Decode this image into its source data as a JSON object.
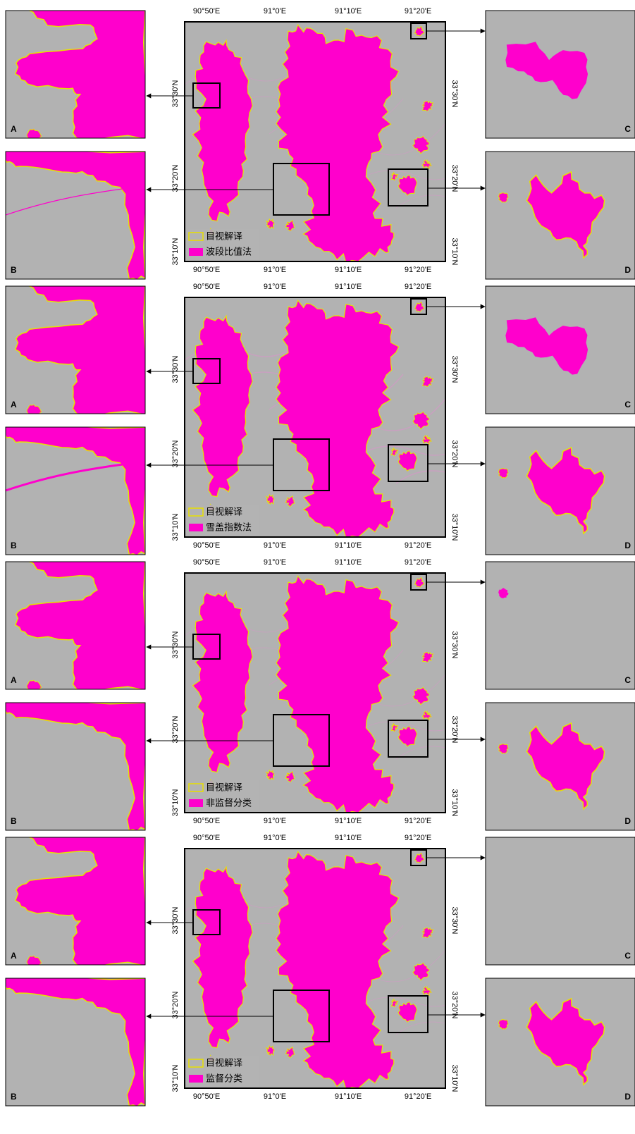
{
  "panels": [
    {
      "legend": [
        "目视解译",
        "波段比值法"
      ]
    },
    {
      "legend": [
        "目视解译",
        "雪盖指数法"
      ]
    },
    {
      "legend": [
        "目视解译",
        "非监督分类"
      ]
    },
    {
      "legend": [
        "目视解译",
        "监督分类"
      ]
    }
  ],
  "lon_ticks": [
    "90°50'E",
    "91°0'E",
    "91°10'E",
    "91°20'E"
  ],
  "lat_ticks": [
    "33°30'N",
    "33°20'N",
    "33°10'N"
  ],
  "inset_labels": [
    "A",
    "B",
    "C",
    "D"
  ]
}
